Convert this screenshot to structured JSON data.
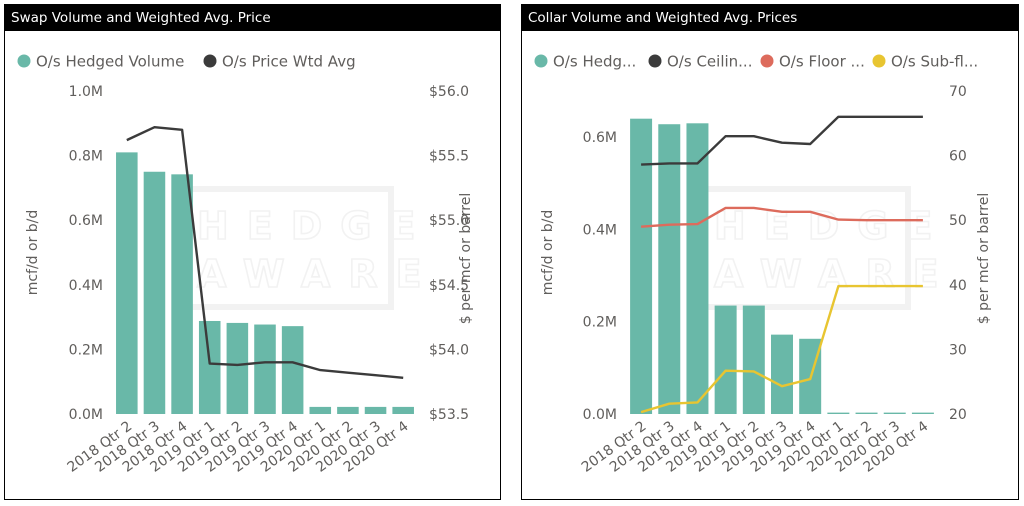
{
  "colors": {
    "bar": "#69b8a8",
    "line_dark": "#3b3b3b",
    "line_floor": "#dd6b5c",
    "line_subfloor": "#e8c531",
    "axis_text": "#605e5c"
  },
  "watermark": {
    "line1": "HEDGE",
    "line2": "AWARE"
  },
  "chart_data": [
    {
      "type": "bar",
      "title": "Swap Volume and Weighted Avg. Price",
      "categories": [
        "2018 Qtr 2",
        "2018 Qtr 3",
        "2018 Qtr 4",
        "2019 Qtr 1",
        "2019 Qtr 2",
        "2019 Qtr 3",
        "2019 Qtr 4",
        "2020 Qtr 1",
        "2020 Qtr 2",
        "2020 Qtr 3",
        "2020 Qtr 4"
      ],
      "legend": [
        "O/s Hedged Volume",
        "O/s Price Wtd Avg"
      ],
      "legend_position": "top-left",
      "ylabel": "mcf/d or b/d",
      "y2label": "$ per mcf or barrel",
      "ylim": [
        0,
        1000000
      ],
      "y_ticks": [
        0,
        200000,
        400000,
        600000,
        800000,
        1000000
      ],
      "y_tick_labels": [
        "0.0M",
        "0.2M",
        "0.4M",
        "0.6M",
        "0.8M",
        "1.0M"
      ],
      "y2lim": [
        53.5,
        56.0
      ],
      "y2_ticks": [
        53.5,
        54.0,
        54.5,
        55.0,
        55.5,
        56.0
      ],
      "y2_tick_labels": [
        "$53.5",
        "$54.0",
        "$54.5",
        "$55.0",
        "$55.5",
        "$56.0"
      ],
      "grid": false,
      "series": [
        {
          "name": "O/s Hedged Volume",
          "kind": "bar",
          "axis": "left",
          "color": "#69b8a8",
          "values": [
            810000,
            750000,
            742000,
            288000,
            282000,
            277000,
            272000,
            22000,
            22000,
            22000,
            22000
          ]
        },
        {
          "name": "O/s Price Wtd Avg",
          "kind": "line",
          "axis": "right",
          "color": "#3b3b3b",
          "values": [
            55.62,
            55.72,
            55.7,
            53.89,
            53.88,
            53.9,
            53.9,
            53.84,
            53.82,
            53.8,
            53.78
          ]
        }
      ]
    },
    {
      "type": "bar",
      "title": "Collar Volume and Weighted Avg. Prices",
      "categories": [
        "2018 Qtr 2",
        "2018 Qtr 3",
        "2018 Qtr 4",
        "2019 Qtr 1",
        "2019 Qtr 2",
        "2019 Qtr 3",
        "2019 Qtr 4",
        "2020 Qtr 1",
        "2020 Qtr 2",
        "2020 Qtr 3",
        "2020 Qtr 4"
      ],
      "legend": [
        "O/s Hedg...",
        "O/s Ceilin...",
        "O/s Floor ...",
        "O/s Sub-fl..."
      ],
      "legend_position": "top-left",
      "ylabel": "mcf/d or b/d",
      "y2label": "$ per mcf or barrel",
      "ylim": [
        0,
        700000
      ],
      "y_ticks": [
        0,
        200000,
        400000,
        600000
      ],
      "y_tick_labels": [
        "0.0M",
        "0.2M",
        "0.4M",
        "0.6M"
      ],
      "y2lim": [
        20,
        70
      ],
      "y2_ticks": [
        20,
        30,
        40,
        50,
        60,
        70
      ],
      "y2_tick_labels": [
        "20",
        "30",
        "40",
        "50",
        "60",
        "70"
      ],
      "grid": false,
      "series": [
        {
          "name": "O/s Hedg...",
          "kind": "bar",
          "axis": "left",
          "color": "#69b8a8",
          "values": [
            640000,
            628000,
            630000,
            235000,
            235000,
            172000,
            163000,
            3000,
            3000,
            3000,
            3000
          ]
        },
        {
          "name": "O/s Ceilin...",
          "kind": "line",
          "axis": "right",
          "color": "#3b3b3b",
          "values": [
            58.6,
            58.8,
            58.8,
            63.0,
            63.0,
            62.0,
            61.8,
            66.0,
            66.0,
            66.0,
            66.0
          ]
        },
        {
          "name": "O/s Floor ...",
          "kind": "line",
          "axis": "right",
          "color": "#dd6b5c",
          "values": [
            49.0,
            49.3,
            49.4,
            51.9,
            51.9,
            51.3,
            51.3,
            50.1,
            50.0,
            50.0,
            50.0
          ]
        },
        {
          "name": "O/s Sub-fl...",
          "kind": "line",
          "axis": "right",
          "color": "#e8c531",
          "values": [
            20.3,
            21.6,
            21.8,
            26.7,
            26.6,
            24.3,
            25.4,
            39.8,
            39.8,
            39.8,
            39.8
          ]
        }
      ]
    }
  ]
}
